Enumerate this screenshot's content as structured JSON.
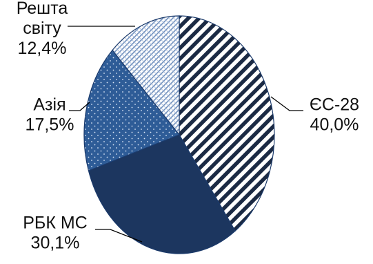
{
  "chart_data": {
    "type": "pie",
    "start_angle_deg": 0,
    "direction": "clockwise",
    "slices": [
      {
        "label": [
          "ЄС-28"
        ],
        "value": 40.0,
        "value_label": "40,0%",
        "fill": "hatch",
        "color": "#1b2a44"
      },
      {
        "label": [
          "РБК МС"
        ],
        "value": 30.1,
        "value_label": "30,1%",
        "fill": "solid",
        "color": "#1c365f"
      },
      {
        "label": [
          "Азія"
        ],
        "value": 17.5,
        "value_label": "17,5%",
        "fill": "dots",
        "color": "#2e5c97"
      },
      {
        "label": [
          "Решта",
          "світу"
        ],
        "value": 12.4,
        "value_label": "12,4%",
        "fill": "fine-hatch",
        "color": "#6f8fbd"
      }
    ]
  }
}
